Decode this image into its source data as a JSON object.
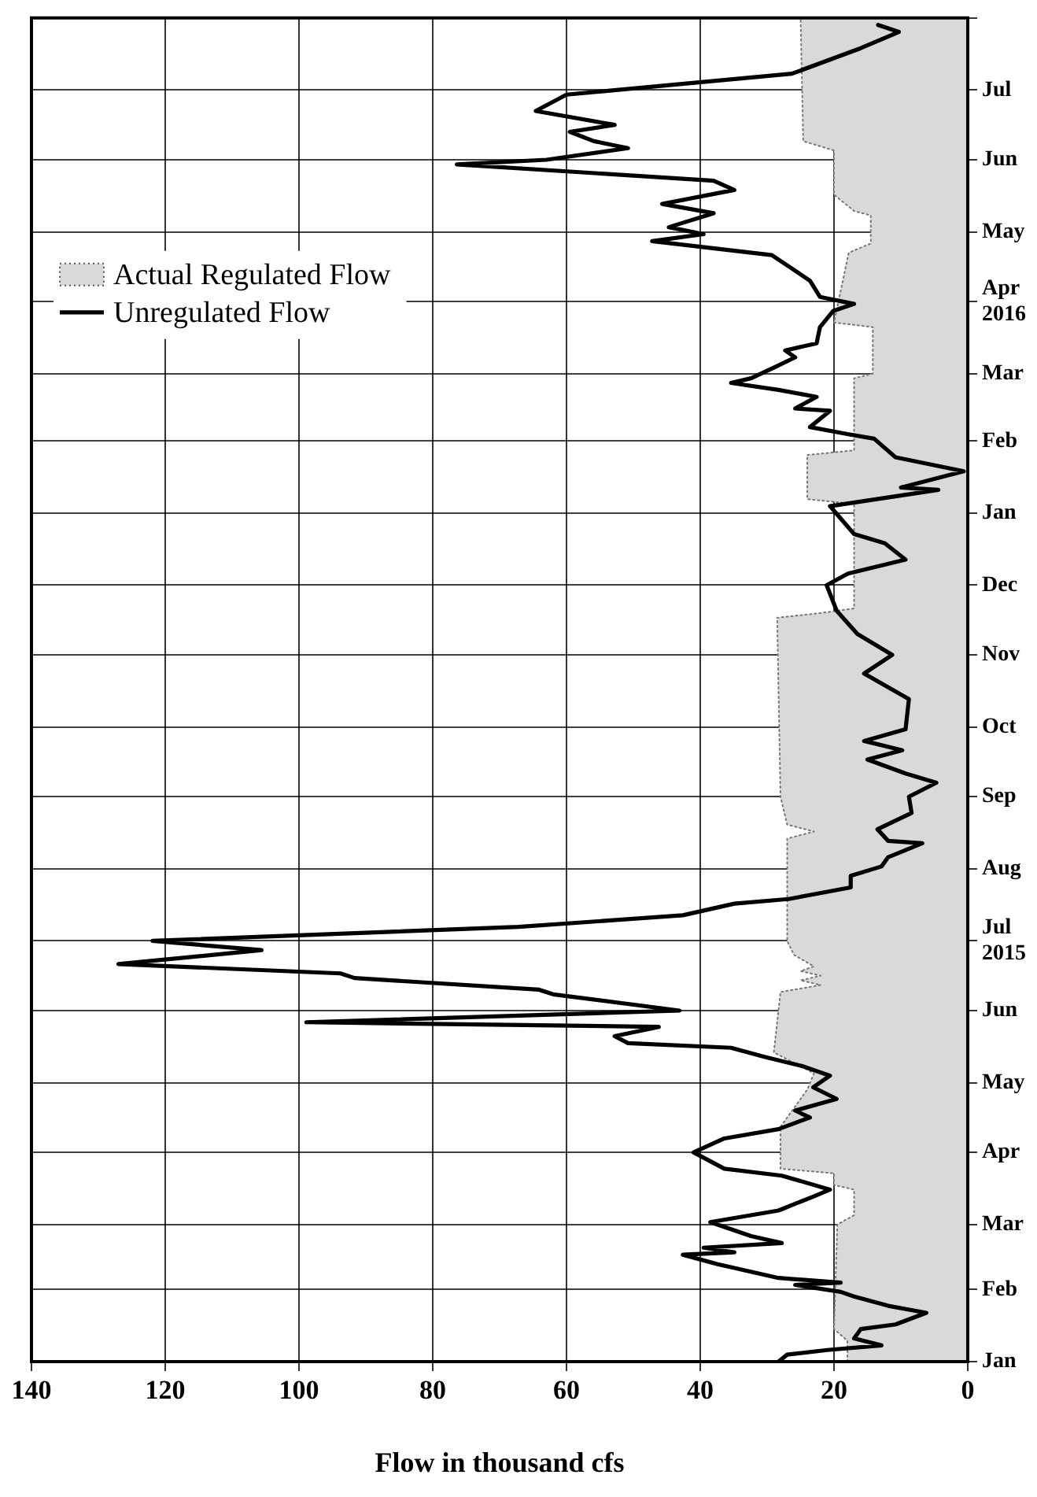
{
  "chart_data": {
    "type": "line",
    "orientation": "horizontal",
    "xlabel": "Flow in thousand cfs",
    "ylim": [
      "2015-01-01",
      "2016-08-01"
    ],
    "yticks": [
      {
        "value": "2015-01",
        "label": "Jan"
      },
      {
        "value": "2015-02",
        "label": "Feb"
      },
      {
        "value": "2015-03",
        "label": "Mar"
      },
      {
        "value": "2015-04",
        "label": "Apr"
      },
      {
        "value": "2015-05",
        "label": "May"
      },
      {
        "value": "2015-06",
        "label": "Jun"
      },
      {
        "value": "2015-07",
        "label": "Jul\n2015"
      },
      {
        "value": "2015-08",
        "label": "Aug"
      },
      {
        "value": "2015-09",
        "label": "Sep"
      },
      {
        "value": "2015-10",
        "label": "Oct"
      },
      {
        "value": "2015-11",
        "label": "Nov"
      },
      {
        "value": "2015-12",
        "label": "Dec"
      },
      {
        "value": "2016-01",
        "label": "Jan"
      },
      {
        "value": "2016-02",
        "label": "Feb"
      },
      {
        "value": "2016-03",
        "label": "Mar"
      },
      {
        "value": "2016-04",
        "label": "Apr\n2016"
      },
      {
        "value": "2016-05",
        "label": "May"
      },
      {
        "value": "2016-06",
        "label": "Jun"
      },
      {
        "value": "2016-07",
        "label": "Jul"
      },
      {
        "value": "2016-08",
        "label": null
      }
    ],
    "xlim": [
      140,
      0
    ],
    "xticks": [
      140,
      120,
      100,
      80,
      60,
      40,
      20,
      0
    ],
    "grid": true,
    "legend": "top left",
    "marker": "none",
    "line_style": "solid",
    "series": [
      {
        "name": "Actual Regulated Flow",
        "type": "area",
        "color": "#d9d9d9",
        "x": [
          "2015-01-01",
          "2015-01-10",
          "2015-01-15",
          "2015-03-01",
          "2015-03-05",
          "2015-03-16",
          "2015-03-18",
          "2015-03-23",
          "2015-03-25",
          "2015-04-12",
          "2015-04-28",
          "2015-05-05",
          "2015-05-14",
          "2015-06-09",
          "2015-06-12",
          "2015-06-14",
          "2015-06-16",
          "2015-06-18",
          "2015-06-20",
          "2015-06-25",
          "2015-07-01",
          "2015-08-14",
          "2015-08-17",
          "2015-08-20",
          "2015-09-01",
          "2015-11-17",
          "2015-11-19",
          "2015-11-21",
          "2016-01-05",
          "2016-01-07",
          "2016-01-26",
          "2016-01-28",
          "2016-02-28",
          "2016-03-01",
          "2016-03-21",
          "2016-03-23",
          "2016-04-22",
          "2016-04-26",
          "2016-05-08",
          "2016-05-10",
          "2016-05-17",
          "2016-06-05",
          "2016-06-09",
          "2016-08-01"
        ],
        "values": [
          18,
          18,
          20,
          19.5,
          17,
          17,
          20,
          20,
          28,
          28,
          24,
          23,
          29,
          28,
          22,
          25,
          22,
          25,
          23,
          26,
          27,
          27,
          23,
          27,
          28,
          28.5,
          22,
          17,
          17,
          24,
          24,
          17,
          17,
          14.2,
          14.2,
          20,
          17.8,
          14.5,
          14.5,
          17,
          20,
          20,
          24.6,
          25
        ]
      },
      {
        "name": "Unregulated Flow",
        "type": "line",
        "color": "#000000",
        "x": [
          "2015-01-01",
          "2015-01-04",
          "2015-01-06",
          "2015-01-08",
          "2015-01-11",
          "2015-01-15",
          "2015-01-17",
          "2015-01-22",
          "2015-01-25",
          "2015-01-29",
          "2015-01-31",
          "2015-02-03",
          "2015-02-04",
          "2015-02-06",
          "2015-02-12",
          "2015-02-16",
          "2015-02-17",
          "2015-02-19",
          "2015-02-21",
          "2015-02-24",
          "2015-03-02",
          "2015-03-07",
          "2015-03-13",
          "2015-03-16",
          "2015-03-22",
          "2015-03-25",
          "2015-04-01",
          "2015-04-07",
          "2015-04-11",
          "2015-04-16",
          "2015-04-19",
          "2015-04-24",
          "2015-04-29",
          "2015-05-04",
          "2015-05-08",
          "2015-05-12",
          "2015-05-16",
          "2015-05-18",
          "2015-05-21",
          "2015-05-25",
          "2015-05-27",
          "2015-06-01",
          "2015-06-08",
          "2015-06-10",
          "2015-06-15",
          "2015-06-17",
          "2015-06-21",
          "2015-06-27",
          "2015-07-01",
          "2015-07-07",
          "2015-07-12",
          "2015-07-17",
          "2015-07-19",
          "2015-07-24",
          "2015-07-29",
          "2015-08-02",
          "2015-08-06",
          "2015-08-12",
          "2015-08-13",
          "2015-08-18",
          "2015-08-25",
          "2015-09-01",
          "2015-09-07",
          "2015-09-11",
          "2015-09-17",
          "2015-09-21",
          "2015-09-25",
          "2015-09-30",
          "2015-10-13",
          "2015-10-24",
          "2015-11-01",
          "2015-11-10",
          "2015-11-20",
          "2015-12-01",
          "2015-12-06",
          "2015-12-12",
          "2015-12-19",
          "2015-12-23",
          "2016-01-04",
          "2016-01-11",
          "2016-01-12",
          "2016-01-19",
          "2016-01-25",
          "2016-02-02",
          "2016-02-04",
          "2016-02-07",
          "2016-02-14",
          "2016-02-15",
          "2016-02-20",
          "2016-02-23",
          "2016-02-26",
          "2016-02-28",
          "2016-03-04",
          "2016-03-08",
          "2016-03-11",
          "2016-03-14",
          "2016-03-21",
          "2016-03-28",
          "2016-03-31",
          "2016-04-03",
          "2016-04-10",
          "2016-04-21",
          "2016-04-27",
          "2016-04-30",
          "2016-05-03",
          "2016-05-09",
          "2016-05-13",
          "2016-05-19",
          "2016-05-23",
          "2016-05-30",
          "2016-06-01",
          "2016-06-06",
          "2016-06-09",
          "2016-06-13",
          "2016-06-16",
          "2016-06-22",
          "2016-06-29",
          "2016-07-08",
          "2016-07-19",
          "2016-07-26",
          "2016-07-29"
        ],
        "values": [
          28.3,
          27,
          21,
          12.9,
          17,
          16,
          10.8,
          6.2,
          11.9,
          17,
          19,
          25.8,
          19,
          28.3,
          37.5,
          42.6,
          34.9,
          39.5,
          27.8,
          32.4,
          38.5,
          28.3,
          23.1,
          20.6,
          27.8,
          36.4,
          41,
          36.4,
          28.3,
          23.6,
          25.8,
          19.6,
          23.1,
          20.6,
          24.6,
          30.3,
          35.4,
          50.8,
          52.8,
          46.2,
          98.9,
          43.1,
          62,
          64.1,
          91.7,
          93.8,
          127,
          105.6,
          121.9,
          67.2,
          42.6,
          34.9,
          26.8,
          17.5,
          17.5,
          12.9,
          11.9,
          6.8,
          11.9,
          13.5,
          8.4,
          8.8,
          4.7,
          9.3,
          15,
          9.8,
          15.5,
          9.3,
          8.8,
          15.5,
          11.3,
          16.5,
          19.6,
          21.1,
          17.9,
          9.3,
          12.4,
          17,
          20.6,
          4.4,
          10,
          0.6,
          10.8,
          14,
          18,
          23.6,
          20.6,
          25.8,
          22.6,
          28.3,
          35.4,
          32.4,
          28.7,
          25.8,
          27.3,
          22.6,
          22.1,
          20.1,
          17,
          22.1,
          23.6,
          29.3,
          47.2,
          39.5,
          44.7,
          38,
          45.7,
          34.9,
          38,
          76.4,
          63,
          50.8,
          55.9,
          59.5,
          52.8,
          64.6,
          60,
          26.3,
          16,
          10.3,
          13.4
        ]
      }
    ]
  }
}
